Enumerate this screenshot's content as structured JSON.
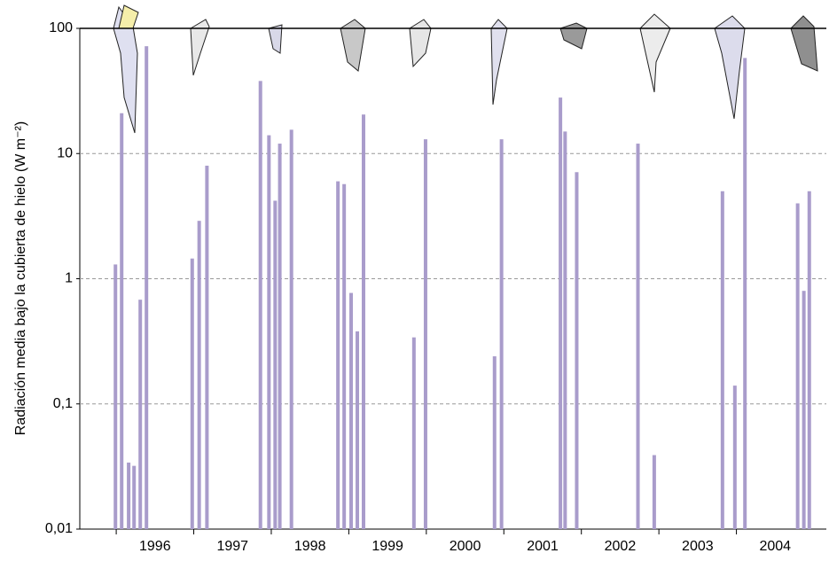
{
  "chart_data": {
    "type": "bar",
    "y_label": "Radiación media bajo la cubierta de hielo (W m⁻²)",
    "log_scale": true,
    "grid": true,
    "color": "#a99ccb",
    "x": [
      1995.99,
      1996.07,
      1996.16,
      1996.23,
      1996.31,
      1996.39,
      1996.98,
      1997.07,
      1997.17,
      1997.86,
      1997.97,
      1998.05,
      1998.11,
      1998.26,
      1998.86,
      1998.94,
      1999.03,
      1999.11,
      1999.19,
      1999.84,
      1999.99,
      2000.88,
      2000.97,
      2001.73,
      2001.79,
      2001.94,
      2002.73,
      2002.94,
      2003.82,
      2003.98,
      2004.11,
      2004.79,
      2004.87,
      2004.94
    ],
    "values": [
      1.3,
      21,
      0.034,
      0.032,
      0.68,
      72,
      1.45,
      2.9,
      8,
      38,
      14,
      4.2,
      12,
      15.5,
      6,
      5.7,
      0.77,
      0.38,
      20.5,
      0.34,
      13,
      0.24,
      13,
      28,
      15,
      7.1,
      12,
      0.039,
      5,
      0.14,
      58,
      4,
      0.8,
      5
    ],
    "xlim": [
      1995.53,
      2005.16
    ],
    "xticks": [
      1996,
      1997,
      1998,
      1999,
      2000,
      2001,
      2002,
      2003,
      2004
    ],
    "ylim": [
      0.01,
      100
    ],
    "yticks": [
      {
        "value": 0.01,
        "label": "0,01"
      },
      {
        "value": 0.1,
        "label": "0,1"
      },
      1,
      10,
      100
    ]
  }
}
